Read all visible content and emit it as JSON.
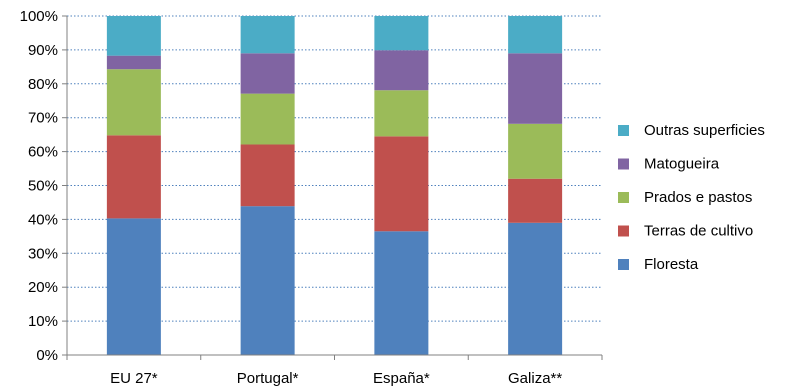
{
  "chart_data": {
    "type": "bar",
    "stacked": true,
    "percent": true,
    "categories": [
      "EU 27*",
      "Portugal*",
      "España*",
      "Galiza**"
    ],
    "series": [
      {
        "name": "Floresta",
        "color": "#4F81BD",
        "values": [
          40.3,
          43.9,
          36.5,
          39.0
        ]
      },
      {
        "name": "Terras de cultivo",
        "color": "#C0504D",
        "values": [
          24.5,
          18.2,
          28.0,
          13.0
        ]
      },
      {
        "name": "Prados e pastos",
        "color": "#9BBB59",
        "values": [
          19.5,
          15.0,
          13.6,
          16.2
        ]
      },
      {
        "name": "Matogueira",
        "color": "#8064A2",
        "values": [
          4.0,
          11.9,
          11.8,
          20.8
        ]
      },
      {
        "name": "Outras superficies",
        "color": "#4BACC6",
        "values": [
          11.7,
          11.0,
          10.1,
          11.0
        ]
      }
    ],
    "ylim": [
      0,
      100
    ],
    "yticks": [
      "0%",
      "10%",
      "20%",
      "30%",
      "40%",
      "50%",
      "60%",
      "70%",
      "80%",
      "90%",
      "100%"
    ],
    "grid": "horizontal dotted",
    "legend": "right"
  }
}
